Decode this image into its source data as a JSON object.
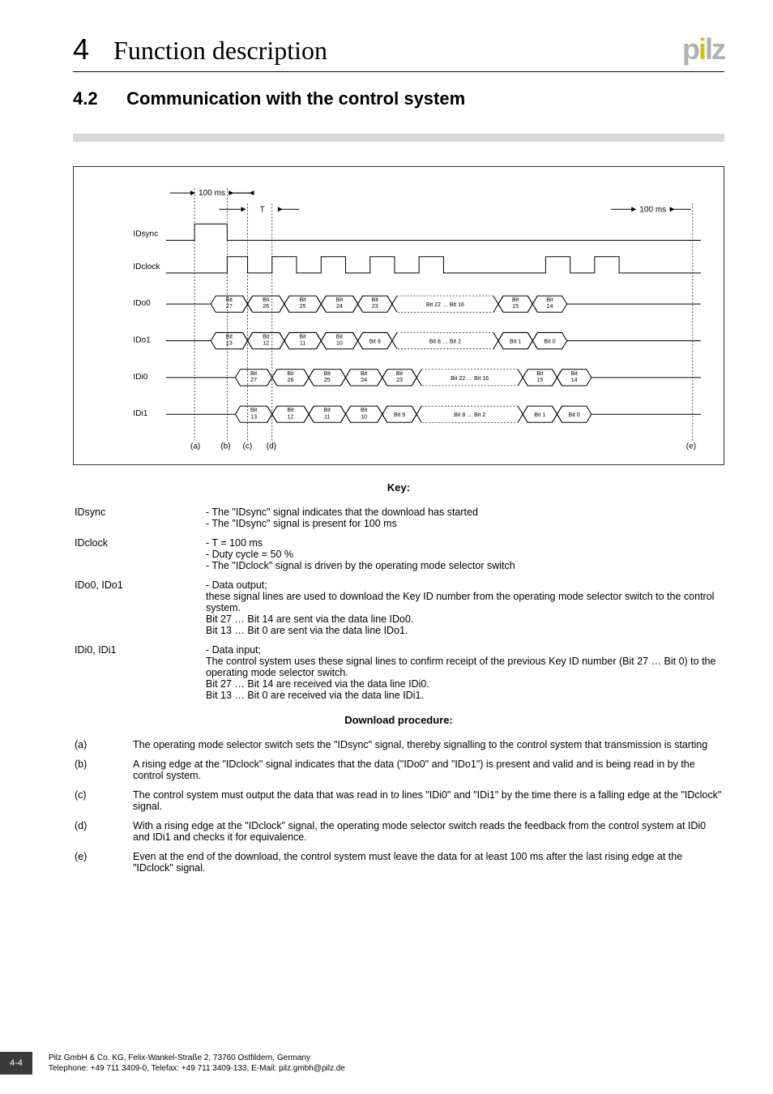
{
  "header": {
    "chapter_number": "4",
    "chapter_title": "Function description",
    "logo_text": "pilz"
  },
  "section": {
    "number": "4.2",
    "title": "Communication with the control system"
  },
  "diagram": {
    "pulse_100ms_left": "100 ms",
    "pulse_100ms_right": "100 ms",
    "period_label": "T",
    "signals": [
      "IDsync",
      "IDclock",
      "IDo0",
      "IDo1",
      "IDi0",
      "IDi1"
    ],
    "markers": [
      "(a)",
      "(b)",
      "(c)",
      "(d)",
      "(e)"
    ],
    "ido0_bits": [
      "Bit\n27",
      "Bit\n26",
      "Bit\n25",
      "Bit\n24",
      "Bit\n23",
      "Bit 22 … Bit 16",
      "Bit\n15",
      "Bit\n14"
    ],
    "ido1_bits": [
      "Bit\n13",
      "Bit\n12",
      "Bit\n11",
      "Bit\n10",
      "Bit 9",
      "Bit 8 … Bit 2",
      "Bit 1",
      "Bit 0"
    ],
    "idi0_bits": [
      "Bit\n27",
      "Bit\n26",
      "Bit\n25",
      "Bit\n24",
      "Bit\n23",
      "Bit 22 … Bit 16",
      "Bit\n15",
      "Bit\n14"
    ],
    "idi1_bits": [
      "Bit\n13",
      "Bit\n12",
      "Bit\n11",
      "Bit\n10",
      "Bit 9",
      "Bit 8 … Bit 2",
      "Bit 1",
      "Bit 0"
    ]
  },
  "key": {
    "heading": "Key:",
    "rows": [
      {
        "label": "IDsync",
        "text": "- The \"IDsync\" signal indicates that the download has started\n- The \"IDsync\" signal is present for 100 ms"
      },
      {
        "label": "IDclock",
        "text": "- T = 100 ms\n- Duty cycle = 50 %\n- The \"IDclock\" signal is driven by the operating mode selector switch"
      },
      {
        "label": "IDo0, IDo1",
        "text": "- Data output;\nthese signal lines are used to download the Key ID number from the operating mode selector switch to the control system.\nBit 27 … Bit 14 are sent via the data line IDo0.\nBit 13 … Bit 0 are sent via the data line IDo1."
      },
      {
        "label": "IDi0, IDi1",
        "text": "- Data input;\nThe control system uses these signal lines to confirm receipt of the previous Key ID number (Bit 27 … Bit 0) to the operating mode selector switch.\nBit 27 … Bit 14 are received via the data line IDi0.\nBit 13 … Bit 0 are received via the data line IDi1."
      }
    ]
  },
  "procedure": {
    "heading": "Download procedure:",
    "rows": [
      {
        "label": "(a)",
        "text": "The operating mode selector switch sets the \"IDsync\" signal, thereby signalling to the control system that transmission is starting"
      },
      {
        "label": "(b)",
        "text": "A rising edge at the \"IDclock\" signal indicates that the data (\"IDo0\" and \"IDo1\") is present and valid and is being read in by the control system."
      },
      {
        "label": "(c)",
        "text": "The control system must output the data that was read in to lines \"IDi0\" and \"IDi1\" by the time there is a falling edge at the \"IDclock\" signal."
      },
      {
        "label": "(d)",
        "text": "With a rising edge at the \"IDclock\" signal, the operating mode selector switch reads the feedback from the control system at IDi0 and IDi1 and checks it for equivalence."
      },
      {
        "label": "(e)",
        "text": "Even at the end of the download, the control system must leave the data for at least 100 ms after the last rising edge at the \"IDclock\" signal."
      }
    ]
  },
  "footer": {
    "page": "4-4",
    "line1": "Pilz GmbH & Co. KG, Felix-Wankel-Straße 2, 73760 Ostfildern, Germany",
    "line2": "Telephone: +49 711 3409-0, Telefax: +49 711 3409-133, E-Mail: pilz.gmbh@pilz.de"
  }
}
